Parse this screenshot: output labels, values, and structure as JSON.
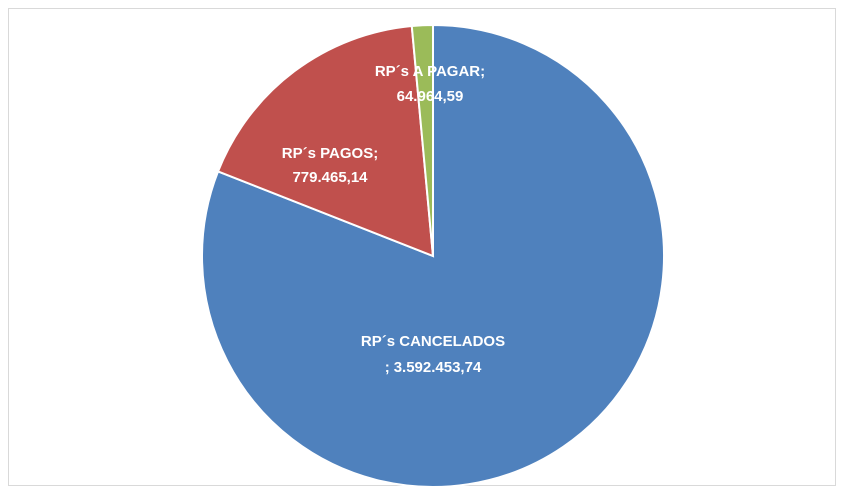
{
  "chart_data": {
    "type": "pie",
    "categories": [
      "RP´s CANCELADOS",
      "RP´s PAGOS",
      "RP´s A PAGAR"
    ],
    "values": [
      3592453.74,
      779465.14,
      64964.59
    ],
    "value_labels": [
      "3.592.453,74",
      "779.465,14",
      "64.964,59"
    ],
    "separator": ";",
    "colors": [
      "#4f81bd",
      "#c0504d",
      "#9bbb59"
    ]
  }
}
